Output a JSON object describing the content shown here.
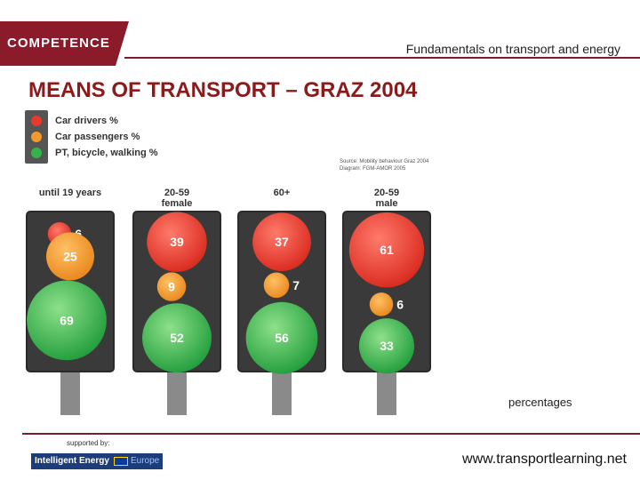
{
  "header": {
    "logo_text": "COMPETENCE",
    "subtitle": "Fundamentals on transport and energy"
  },
  "title": "MEANS OF TRANSPORT – GRAZ 2004",
  "legend": [
    {
      "label": "Car drivers %",
      "color": "#e8392b"
    },
    {
      "label": "Car passengers %",
      "color": "#f39a2a"
    },
    {
      "label": "PT, bicycle, walking %",
      "color": "#34b34a"
    }
  ],
  "source": {
    "line1": "Source: Mobility behaviour Graz 2004",
    "line2": "Diagram: FGM-AMOR 2005"
  },
  "chart_data": {
    "type": "bubble",
    "title": "MEANS OF TRANSPORT – GRAZ 2004",
    "unit": "percentages",
    "categories": [
      "until 19 years",
      "20-59 female",
      "60+",
      "20-59 male"
    ],
    "category_lines": [
      [
        "until 19 years"
      ],
      [
        "20-59",
        "female"
      ],
      [
        "60+"
      ],
      [
        "20-59",
        "male"
      ]
    ],
    "series": [
      {
        "name": "Car drivers %",
        "color": "#e8392b",
        "values": [
          6,
          39,
          37,
          61
        ]
      },
      {
        "name": "Car passengers %",
        "color": "#f39a2a",
        "values": [
          25,
          9,
          7,
          6
        ]
      },
      {
        "name": "PT, bicycle, walking %",
        "color": "#34b34a",
        "values": [
          69,
          52,
          56,
          33
        ]
      }
    ]
  },
  "footer": {
    "supported_by": "supported by:",
    "ie_logo_text": "Intelligent Energy",
    "ie_logo_eu": "Europe",
    "website": "www.transportlearning.net"
  }
}
